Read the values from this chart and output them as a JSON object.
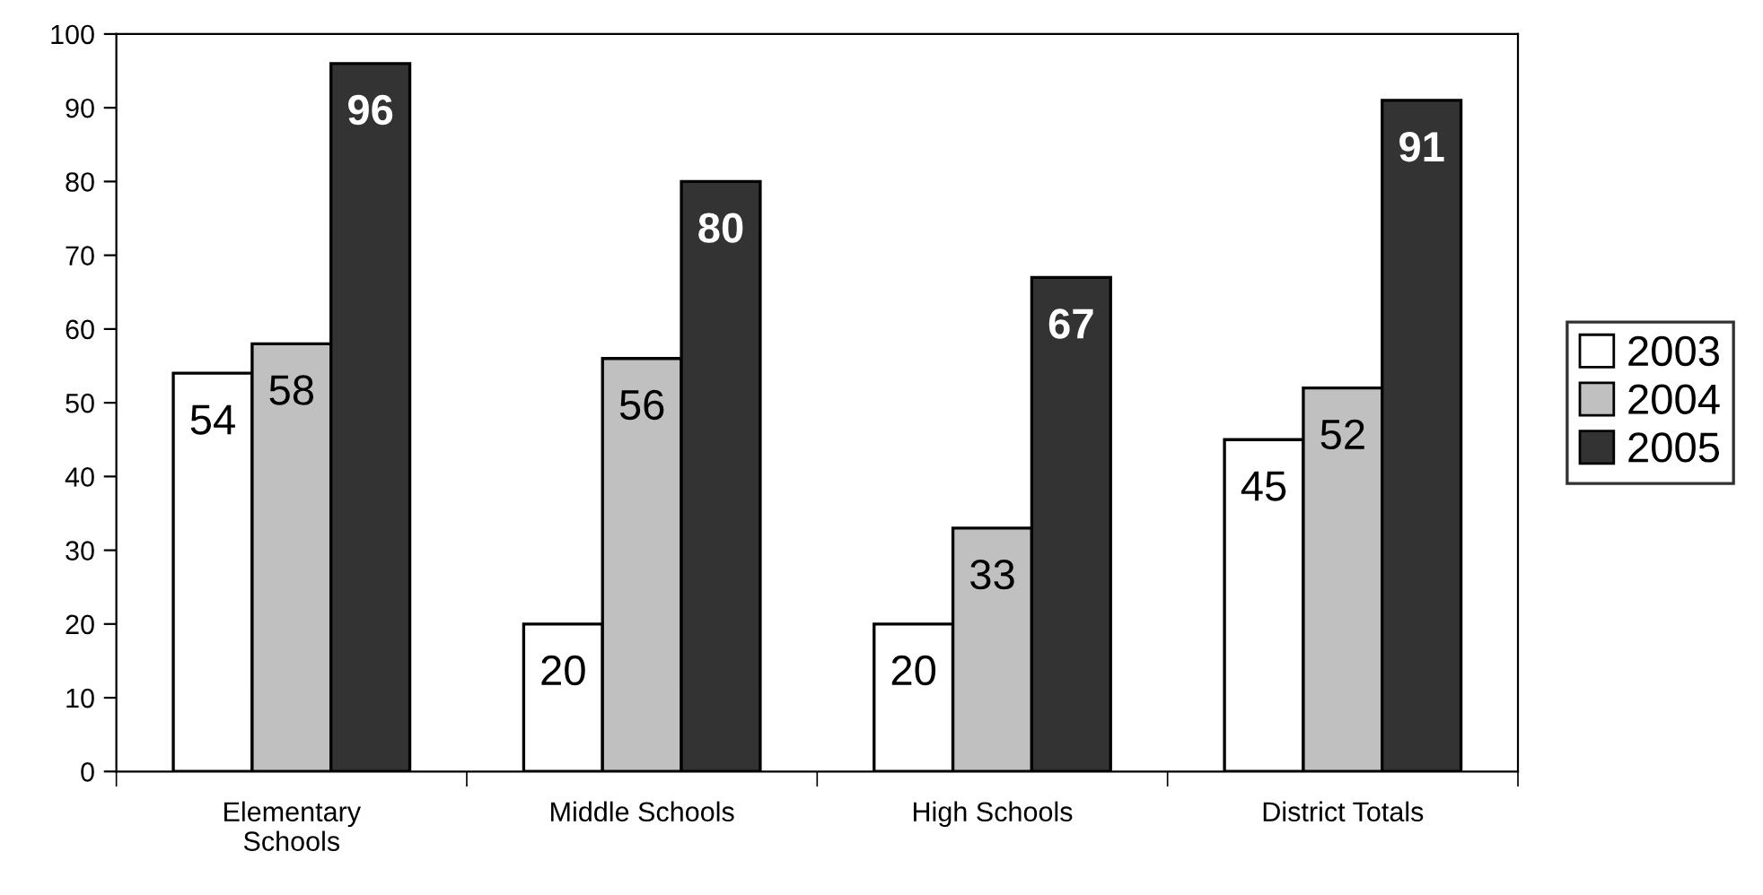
{
  "chart_data": {
    "type": "bar",
    "categories": [
      "Elementary\nSchools",
      "Middle Schools",
      "High Schools",
      "District Totals"
    ],
    "series": [
      {
        "name": "2003",
        "color": "#ffffff",
        "values": [
          54,
          20,
          20,
          45
        ]
      },
      {
        "name": "2004",
        "color": "#c0c0c0",
        "values": [
          58,
          56,
          33,
          52
        ]
      },
      {
        "name": "2005",
        "color": "#333333",
        "values": [
          96,
          80,
          67,
          91
        ]
      }
    ],
    "ylim": [
      0,
      100
    ],
    "yticks": [
      0,
      10,
      20,
      30,
      40,
      50,
      60,
      70,
      80,
      90,
      100
    ],
    "data_labels": true,
    "legend": "right",
    "grid": false
  }
}
